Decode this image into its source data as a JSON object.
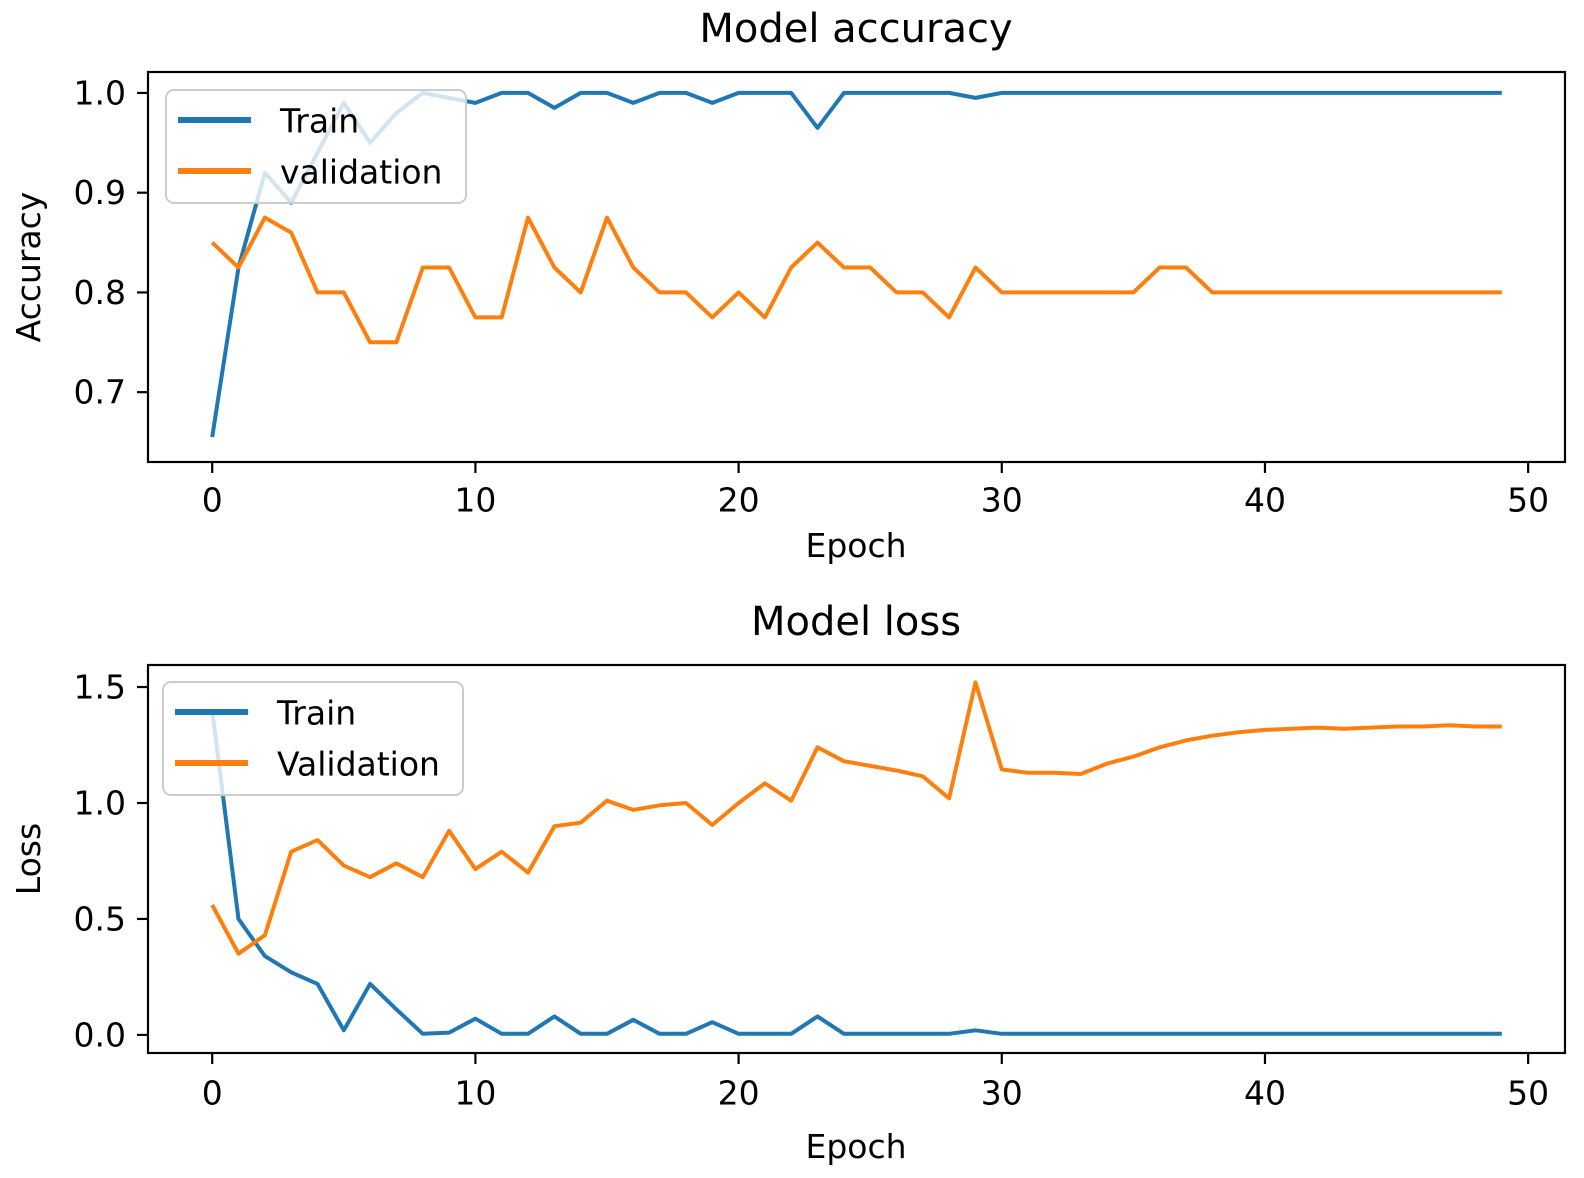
{
  "figure": {
    "background": "#ffffff"
  },
  "palette": {
    "train": "#1f77b4",
    "validation": "#ff7f0e",
    "text": "#000000",
    "spine": "#000000",
    "legend_border": "#cccccc"
  },
  "chart_data": [
    {
      "type": "line",
      "title": "Model accuracy",
      "xlabel": "Epoch",
      "ylabel": "Accuracy",
      "x": [
        0,
        1,
        2,
        3,
        4,
        5,
        6,
        7,
        8,
        9,
        10,
        11,
        12,
        13,
        14,
        15,
        16,
        17,
        18,
        19,
        20,
        21,
        22,
        23,
        24,
        25,
        26,
        27,
        28,
        29,
        30,
        31,
        32,
        33,
        34,
        35,
        36,
        37,
        38,
        39,
        40,
        41,
        42,
        43,
        44,
        45,
        46,
        47,
        48,
        49
      ],
      "series": [
        {
          "name": "Train",
          "color": "#1f77b4",
          "values": [
            0.655,
            0.825,
            0.92,
            0.89,
            0.94,
            0.99,
            0.95,
            0.98,
            1.0,
            0.995,
            0.99,
            1.0,
            1.0,
            0.985,
            1.0,
            1.0,
            0.99,
            1.0,
            1.0,
            0.99,
            1.0,
            1.0,
            1.0,
            0.965,
            1.0,
            1.0,
            1.0,
            1.0,
            1.0,
            0.995,
            1.0,
            1.0,
            1.0,
            1.0,
            1.0,
            1.0,
            1.0,
            1.0,
            1.0,
            1.0,
            1.0,
            1.0,
            1.0,
            1.0,
            1.0,
            1.0,
            1.0,
            1.0,
            1.0,
            1.0
          ]
        },
        {
          "name": "validation",
          "color": "#ff7f0e",
          "values": [
            0.85,
            0.825,
            0.875,
            0.86,
            0.8,
            0.8,
            0.75,
            0.75,
            0.825,
            0.825,
            0.775,
            0.775,
            0.875,
            0.825,
            0.8,
            0.875,
            0.825,
            0.8,
            0.8,
            0.775,
            0.8,
            0.775,
            0.825,
            0.85,
            0.825,
            0.825,
            0.8,
            0.8,
            0.775,
            0.825,
            0.8,
            0.8,
            0.8,
            0.8,
            0.8,
            0.8,
            0.825,
            0.825,
            0.8,
            0.8,
            0.8,
            0.8,
            0.8,
            0.8,
            0.8,
            0.8,
            0.8,
            0.8,
            0.8,
            0.8
          ]
        }
      ],
      "xlim": [
        -2.44,
        51.4
      ],
      "ylim": [
        0.63,
        1.021
      ],
      "xticks": [
        0,
        10,
        20,
        30,
        40,
        50
      ],
      "xtick_labels": [
        "0",
        "10",
        "20",
        "30",
        "40",
        "50"
      ],
      "yticks": [
        0.7,
        0.8,
        0.9,
        1.0
      ],
      "ytick_labels": [
        "0.7",
        "0.8",
        "0.9",
        "1.0"
      ],
      "legend_position": "upper-left",
      "grid": false
    },
    {
      "type": "line",
      "title": "Model loss",
      "xlabel": "Epoch",
      "ylabel": "Loss",
      "x": [
        0,
        1,
        2,
        3,
        4,
        5,
        6,
        7,
        8,
        9,
        10,
        11,
        12,
        13,
        14,
        15,
        16,
        17,
        18,
        19,
        20,
        21,
        22,
        23,
        24,
        25,
        26,
        27,
        28,
        29,
        30,
        31,
        32,
        33,
        34,
        35,
        36,
        37,
        38,
        39,
        40,
        41,
        42,
        43,
        44,
        45,
        46,
        47,
        48,
        49
      ],
      "series": [
        {
          "name": "Train",
          "color": "#1f77b4",
          "values": [
            1.4,
            0.5,
            0.34,
            0.27,
            0.22,
            0.02,
            0.22,
            0.11,
            0.005,
            0.01,
            0.07,
            0.005,
            0.005,
            0.08,
            0.005,
            0.005,
            0.065,
            0.005,
            0.005,
            0.055,
            0.005,
            0.005,
            0.005,
            0.08,
            0.005,
            0.005,
            0.005,
            0.005,
            0.005,
            0.02,
            0.005,
            0.005,
            0.005,
            0.005,
            0.005,
            0.005,
            0.005,
            0.005,
            0.005,
            0.005,
            0.005,
            0.005,
            0.005,
            0.005,
            0.005,
            0.005,
            0.005,
            0.005,
            0.005,
            0.005
          ]
        },
        {
          "name": "Validation",
          "color": "#ff7f0e",
          "values": [
            0.56,
            0.35,
            0.43,
            0.79,
            0.84,
            0.73,
            0.68,
            0.74,
            0.68,
            0.88,
            0.715,
            0.79,
            0.7,
            0.9,
            0.915,
            1.01,
            0.97,
            0.99,
            1.0,
            0.905,
            1.0,
            1.085,
            1.01,
            1.24,
            1.18,
            1.16,
            1.14,
            1.115,
            1.02,
            1.52,
            1.145,
            1.13,
            1.13,
            1.125,
            1.17,
            1.2,
            1.24,
            1.27,
            1.29,
            1.305,
            1.315,
            1.32,
            1.325,
            1.32,
            1.325,
            1.33,
            1.33,
            1.335,
            1.33,
            1.33
          ]
        }
      ],
      "xlim": [
        -2.44,
        51.4
      ],
      "ylim": [
        -0.078,
        1.595
      ],
      "xticks": [
        0,
        10,
        20,
        30,
        40,
        50
      ],
      "xtick_labels": [
        "0",
        "10",
        "20",
        "30",
        "40",
        "50"
      ],
      "yticks": [
        0.0,
        0.5,
        1.0,
        1.5
      ],
      "ytick_labels": [
        "0.0",
        "0.5",
        "1.0",
        "1.5"
      ],
      "legend_position": "upper-left",
      "grid": false
    }
  ]
}
